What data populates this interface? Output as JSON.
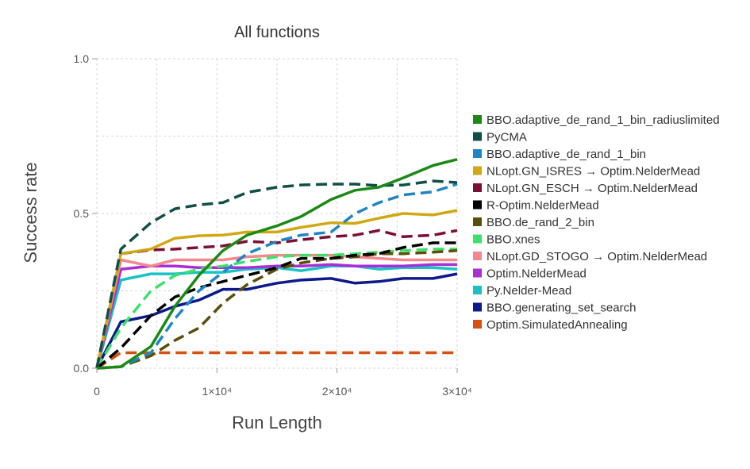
{
  "chart_data": {
    "type": "line",
    "title": "All functions",
    "xlabel": "Run Length",
    "ylabel": "Success rate",
    "xlim": [
      0,
      30000
    ],
    "ylim": [
      0,
      1.0
    ],
    "grid": true,
    "legend_position": "right",
    "x_ticks": [
      {
        "value": 0,
        "label": "0"
      },
      {
        "value": 10000,
        "label": "1×10⁴"
      },
      {
        "value": 20000,
        "label": "2×10⁴"
      },
      {
        "value": 30000,
        "label": "3×10⁴"
      }
    ],
    "y_ticks": [
      {
        "value": 0,
        "label": "0.0"
      },
      {
        "value": 0.5,
        "label": "0.5"
      },
      {
        "value": 1.0,
        "label": "1.0"
      }
    ],
    "x": [
      0,
      2000,
      4500,
      6500,
      8500,
      10500,
      12500,
      15000,
      17000,
      19500,
      21500,
      23500,
      25500,
      28000,
      30000
    ],
    "series": [
      {
        "name": "BBO.adaptive_de_rand_1_bin_radiuslimited",
        "color": "#1b8a14",
        "dash": "solid",
        "values": [
          0,
          0.005,
          0.07,
          0.2,
          0.3,
          0.38,
          0.43,
          0.46,
          0.49,
          0.545,
          0.575,
          0.585,
          0.615,
          0.655,
          0.675
        ]
      },
      {
        "name": "PyCMA",
        "color": "#0f4f48",
        "dash": "dashed",
        "values": [
          0,
          0.385,
          0.47,
          0.515,
          0.528,
          0.535,
          0.568,
          0.585,
          0.592,
          0.595,
          0.595,
          0.59,
          0.592,
          0.605,
          0.6
        ]
      },
      {
        "name": "BBO.adaptive_de_rand_1_bin",
        "color": "#1e86c6",
        "dash": "dashed",
        "values": [
          0,
          0.005,
          0.05,
          0.16,
          0.25,
          0.31,
          0.37,
          0.41,
          0.43,
          0.44,
          0.5,
          0.535,
          0.56,
          0.57,
          0.595
        ]
      },
      {
        "name": "NLopt.GN_ISRES → Optim.NelderMead",
        "color": "#d0a812",
        "dash": "solid",
        "values": [
          0,
          0.37,
          0.385,
          0.42,
          0.428,
          0.43,
          0.44,
          0.44,
          0.455,
          0.47,
          0.468,
          0.485,
          0.5,
          0.495,
          0.51
        ]
      },
      {
        "name": "NLopt.GN_ESCH → Optim.NelderMead",
        "color": "#7c0f36",
        "dash": "dashed",
        "values": [
          0,
          0.37,
          0.382,
          0.385,
          0.39,
          0.395,
          0.41,
          0.405,
          0.415,
          0.425,
          0.43,
          0.445,
          0.425,
          0.43,
          0.445
        ]
      },
      {
        "name": "R-Optim.NelderMead",
        "color": "#000000",
        "dash": "dashed",
        "values": [
          0,
          0.065,
          0.17,
          0.23,
          0.26,
          0.28,
          0.3,
          0.325,
          0.355,
          0.355,
          0.365,
          0.37,
          0.39,
          0.405,
          0.405
        ]
      },
      {
        "name": "BBO.de_rand_2_bin",
        "color": "#5c4e0a",
        "dash": "dashed",
        "values": [
          0,
          0.005,
          0.04,
          0.09,
          0.13,
          0.21,
          0.27,
          0.32,
          0.34,
          0.355,
          0.36,
          0.37,
          0.37,
          0.375,
          0.38
        ]
      },
      {
        "name": "BBO.xnes",
        "color": "#3ee06a",
        "dash": "dashed",
        "values": [
          0,
          0.13,
          0.25,
          0.3,
          0.32,
          0.33,
          0.345,
          0.36,
          0.365,
          0.365,
          0.37,
          0.375,
          0.38,
          0.385,
          0.385
        ]
      },
      {
        "name": "NLopt.GD_STOGO → Optim.NelderMead",
        "color": "#f4888c",
        "dash": "solid",
        "values": [
          0,
          0.35,
          0.33,
          0.35,
          0.35,
          0.35,
          0.36,
          0.365,
          0.365,
          0.365,
          0.36,
          0.355,
          0.35,
          0.35,
          0.35
        ]
      },
      {
        "name": "Optim.NelderMead",
        "color": "#a92ed6",
        "dash": "solid",
        "values": [
          0,
          0.32,
          0.33,
          0.33,
          0.325,
          0.325,
          0.325,
          0.33,
          0.33,
          0.335,
          0.33,
          0.33,
          0.33,
          0.335,
          0.335
        ]
      },
      {
        "name": "Py.Nelder-Mead",
        "color": "#19c3c3",
        "dash": "solid",
        "values": [
          0,
          0.285,
          0.305,
          0.305,
          0.31,
          0.31,
          0.32,
          0.325,
          0.315,
          0.33,
          0.33,
          0.32,
          0.325,
          0.325,
          0.32
        ]
      },
      {
        "name": "BBO.generating_set_search",
        "color": "#0c1a8a",
        "dash": "solid",
        "values": [
          0,
          0.15,
          0.17,
          0.2,
          0.22,
          0.255,
          0.255,
          0.275,
          0.285,
          0.29,
          0.275,
          0.28,
          0.29,
          0.29,
          0.305
        ]
      },
      {
        "name": "Optim.SimulatedAnnealing",
        "color": "#d6510f",
        "dash": "dashed",
        "values": [
          0,
          0.05,
          0.05,
          0.05,
          0.05,
          0.05,
          0.05,
          0.05,
          0.05,
          0.05,
          0.05,
          0.05,
          0.05,
          0.05,
          0.05
        ]
      }
    ]
  }
}
